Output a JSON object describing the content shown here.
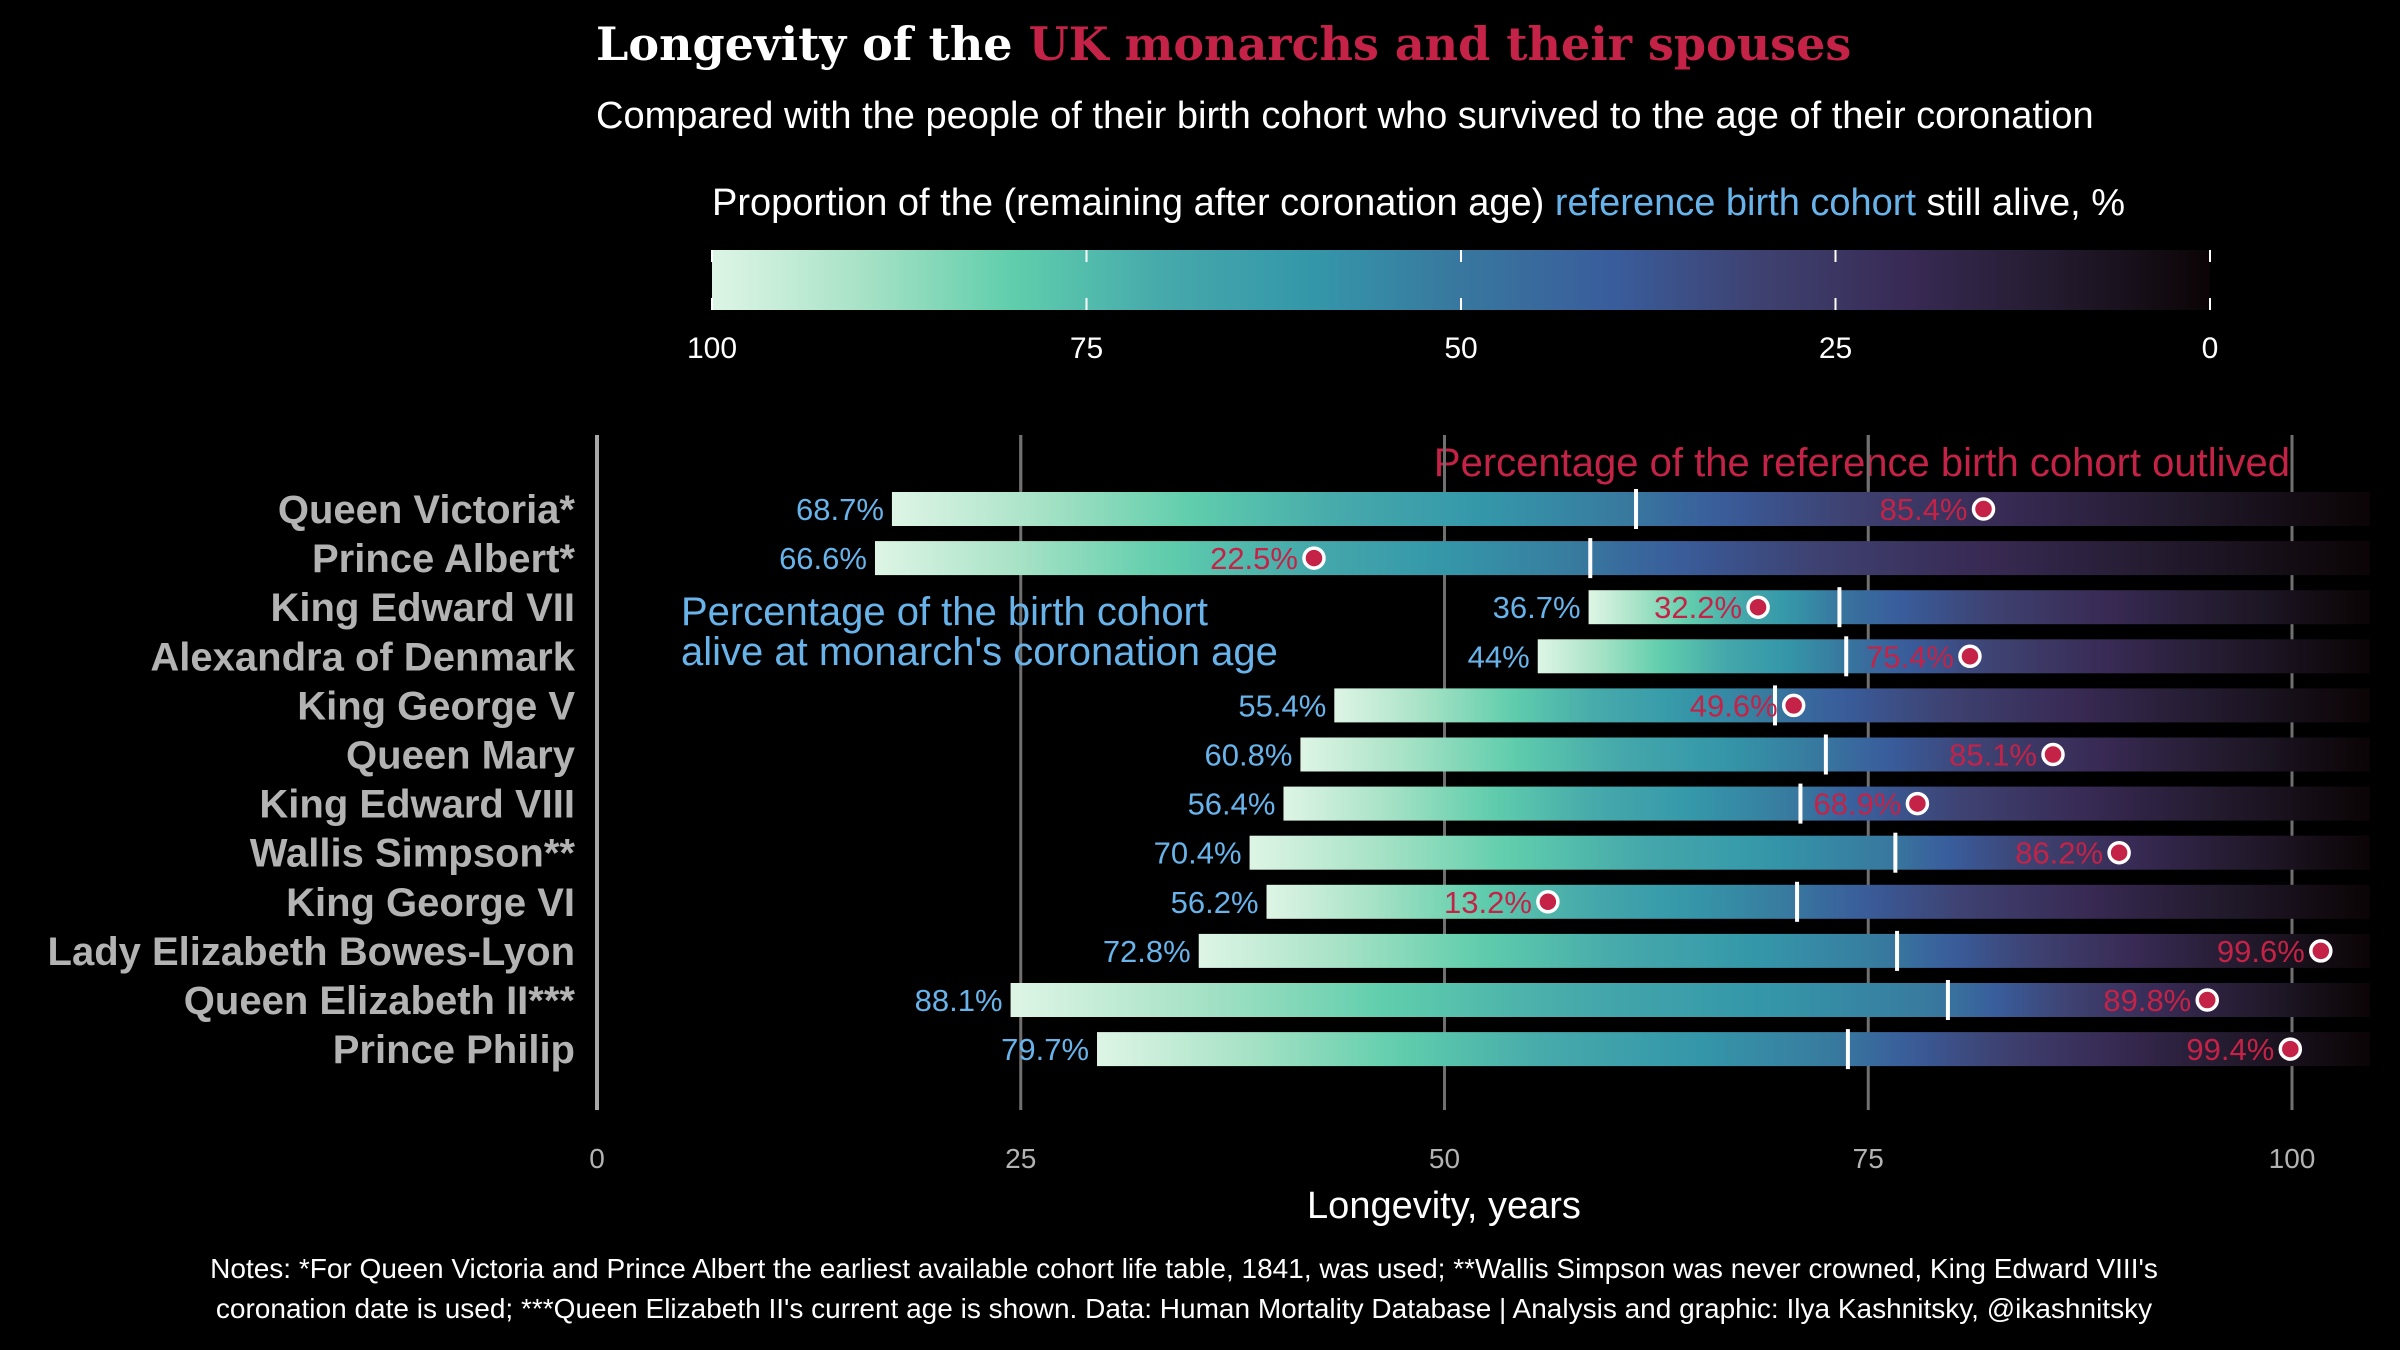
{
  "title": {
    "part1": "Longevity of the ",
    "part2": "UK monarchs and their spouses",
    "part1_color": "#ffffff",
    "part2_color": "#c42347"
  },
  "subtitle": "Compared with the people of their birth cohort who survived to the age of their coronation",
  "legend": {
    "title_part1": "Proportion of the (remaining after coronation age) ",
    "title_part2": "reference birth cohort",
    "title_part3": " still alive, %",
    "ticks": [
      "100",
      "75",
      "50",
      "25",
      "0"
    ],
    "tick_values": [
      100,
      75,
      50,
      25,
      0
    ],
    "palette": "mako (reversed)",
    "color_stops": [
      {
        "value": 100,
        "color": "#def5e5"
      },
      {
        "value": 90,
        "color": "#a7e2c6"
      },
      {
        "value": 80,
        "color": "#60ceac"
      },
      {
        "value": 70,
        "color": "#46a9ab"
      },
      {
        "value": 60,
        "color": "#3497a9"
      },
      {
        "value": 50,
        "color": "#38779e"
      },
      {
        "value": 40,
        "color": "#395d9c"
      },
      {
        "value": 30,
        "color": "#3e4170"
      },
      {
        "value": 20,
        "color": "#382a54"
      },
      {
        "value": 10,
        "color": "#221a2c"
      },
      {
        "value": 0,
        "color": "#0b0405"
      }
    ]
  },
  "annotations": {
    "outlived": "Percentage of the reference birth cohort outlived",
    "alive_line1": "Percentage of the birth cohort",
    "alive_line2": "alive at monarch's coronation age"
  },
  "colors": {
    "background": "#000000",
    "accent_red": "#c42347",
    "accent_blue": "#67b3ea",
    "row_label": "#b3b3b3",
    "grid": "#707070",
    "axis_line": "#a8a8a8",
    "median_marker": "#ffffff",
    "dot_fill": "#c42347",
    "dot_stroke": "#ffffff"
  },
  "chart_data": {
    "type": "bar",
    "subtype": "horizontal gradient range bars with death-age points",
    "title": "Longevity of the UK monarchs and their spouses",
    "subtitle": "Compared with the people of their birth cohort who survived to the age of their coronation",
    "xlabel": "Longevity, years",
    "ylabel": "",
    "xlim": [
      0,
      105
    ],
    "x_ticks": [
      0,
      25,
      50,
      75,
      100
    ],
    "x_tick_labels": [
      "0",
      "25",
      "50",
      "75",
      "100"
    ],
    "bar_end_age": 104.6,
    "grid": "vertical major gridlines",
    "legend_position": "top (colorbar)",
    "categories": [
      "Queen Victoria*",
      "Prince Albert*",
      "King Edward VII",
      "Alexandra of Denmark",
      "King George V",
      "Queen Mary",
      "King Edward VIII",
      "Wallis Simpson**",
      "King George VI",
      "Lady Elizabeth Bowes-Lyon",
      "Queen Elizabeth II***",
      "Prince Philip"
    ],
    "series": [
      {
        "name": "Coronation age (bar start), years",
        "values": [
          17.4,
          16.4,
          58.5,
          55.5,
          43.5,
          41.5,
          40.5,
          38.5,
          39.5,
          35.5,
          24.4,
          29.5
        ]
      },
      {
        "name": "Median survival age of reference cohort (white marker), years",
        "values": [
          61.3,
          58.6,
          73.3,
          73.7,
          69.5,
          72.5,
          71.0,
          76.6,
          70.8,
          76.7,
          79.7,
          73.8
        ]
      },
      {
        "name": "Age at death (red dot), years",
        "values": [
          81.8,
          42.3,
          68.5,
          81.0,
          70.6,
          85.9,
          77.9,
          89.8,
          56.1,
          101.7,
          95.0,
          99.9
        ]
      },
      {
        "name": "Percentage of the birth cohort alive at coronation age",
        "labels": [
          "68.7%",
          "66.6%",
          "36.7%",
          "44%",
          "55.4%",
          "60.8%",
          "56.4%",
          "70.4%",
          "56.2%",
          "72.8%",
          "88.1%",
          "79.7%"
        ],
        "values": [
          68.7,
          66.6,
          36.7,
          44,
          55.4,
          60.8,
          56.4,
          70.4,
          56.2,
          72.8,
          88.1,
          79.7
        ]
      },
      {
        "name": "Percentage of the reference birth cohort outlived",
        "labels": [
          "85.4%",
          "22.5%",
          "32.2%",
          "75.4%",
          "49.6%",
          "85.1%",
          "68.9%",
          "86.2%",
          "13.2%",
          "99.6%",
          "89.8%",
          "99.4%"
        ],
        "values": [
          85.4,
          22.5,
          32.2,
          75.4,
          49.6,
          85.1,
          68.9,
          86.2,
          13.2,
          99.6,
          89.8,
          99.4
        ]
      }
    ],
    "annotations": [
      "Percentage of the reference birth cohort outlived",
      "Percentage of the birth cohort alive at monarch's coronation age"
    ]
  },
  "axis": {
    "xlabel": "Longevity, years",
    "ticks": [
      "0",
      "25",
      "50",
      "75",
      "100"
    ]
  },
  "notes": {
    "line1": "Notes: *For Queen Victoria and Prince Albert the earliest available cohort life table, 1841, was used; **Wallis Simpson was never crowned, King Edward VIII's",
    "line2": "coronation date is used; ***Queen Elizabeth II's current age is shown. Data: Human Mortality Database | Analysis and graphic: Ilya Kashnitsky, @ikashnitsky"
  }
}
